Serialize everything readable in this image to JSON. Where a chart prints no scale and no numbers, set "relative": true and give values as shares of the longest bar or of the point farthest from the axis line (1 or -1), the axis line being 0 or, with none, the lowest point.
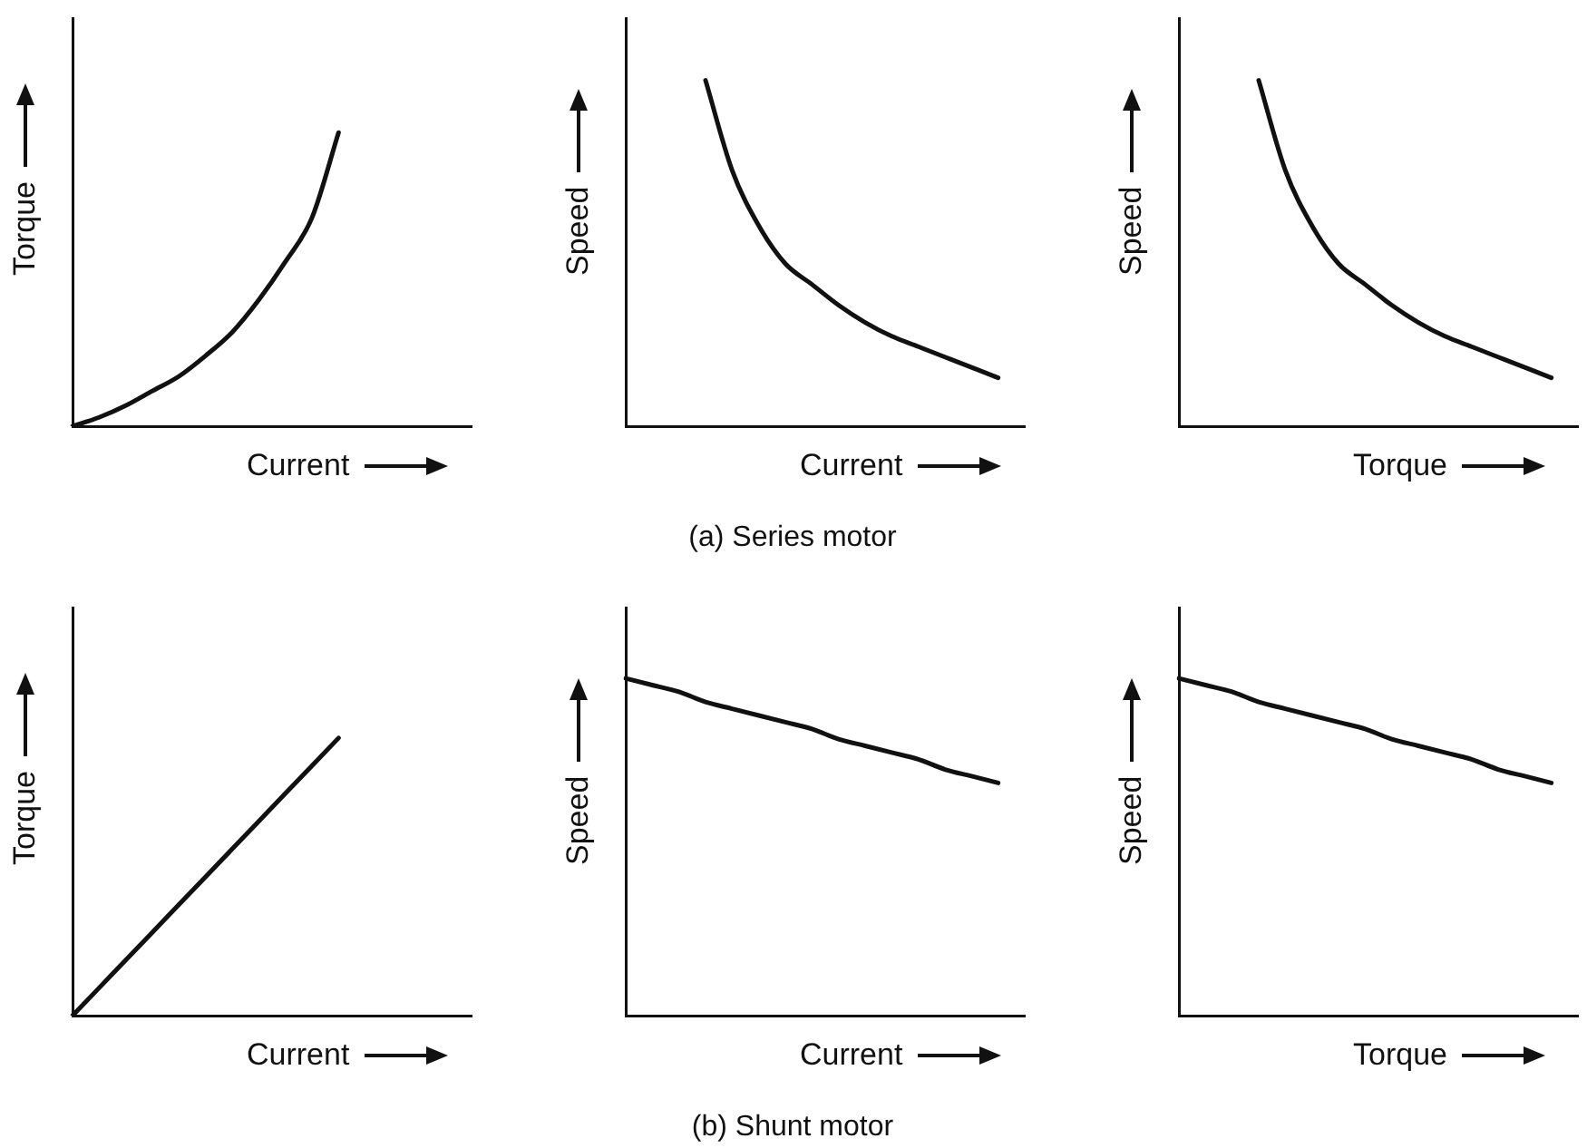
{
  "chart_data": [
    {
      "type": "line",
      "relative": true,
      "ylabel": "Torque",
      "xlabel": "Current",
      "marker": "none",
      "line_style": "solid",
      "categories": [
        null,
        null,
        null,
        null,
        null,
        null,
        null,
        null,
        null,
        null,
        null,
        null,
        null,
        null,
        null,
        null
      ],
      "series": [
        {
          "color": "#111111",
          "values": [
            0,
            0.03,
            0.07,
            0.12,
            0.17,
            0.24,
            0.32,
            0.43,
            0.56,
            0.71,
            1,
            null,
            null,
            null,
            null,
            null
          ]
        }
      ]
    },
    {
      "type": "line",
      "relative": true,
      "ylabel": "Speed",
      "xlabel": "Current",
      "marker": "none",
      "line_style": "solid",
      "annotations": [
        "(a) Series motor"
      ],
      "categories": [
        null,
        null,
        null,
        null,
        null,
        null,
        null,
        null,
        null,
        null,
        null,
        null,
        null,
        null,
        null,
        null
      ],
      "series": [
        {
          "color": "#111111",
          "values": [
            null,
            null,
            null,
            1,
            0.74,
            0.58,
            0.47,
            0.41,
            0.35,
            0.3,
            0.26,
            0.23,
            0.2,
            0.17,
            0.14,
            null
          ]
        }
      ]
    },
    {
      "type": "line",
      "relative": true,
      "ylabel": "Speed",
      "xlabel": "Torque",
      "marker": "none",
      "line_style": "solid",
      "categories": [
        null,
        null,
        null,
        null,
        null,
        null,
        null,
        null,
        null,
        null,
        null,
        null,
        null,
        null,
        null,
        null
      ],
      "series": [
        {
          "color": "#111111",
          "values": [
            null,
            null,
            null,
            1,
            0.74,
            0.58,
            0.47,
            0.41,
            0.35,
            0.3,
            0.26,
            0.23,
            0.2,
            0.17,
            0.14,
            null
          ]
        }
      ]
    },
    {
      "type": "line",
      "relative": true,
      "ylabel": "Torque",
      "xlabel": "Current",
      "marker": "none",
      "line_style": "solid",
      "categories": [
        null,
        null,
        null,
        null,
        null,
        null,
        null,
        null,
        null,
        null,
        null,
        null,
        null,
        null,
        null,
        null
      ],
      "series": [
        {
          "color": "#111111",
          "values": [
            0,
            0.1,
            0.2,
            0.3,
            0.4,
            0.5,
            0.6,
            0.7,
            0.8,
            0.9,
            1,
            null,
            null,
            null,
            null,
            null
          ]
        }
      ]
    },
    {
      "type": "line",
      "relative": true,
      "ylabel": "Speed",
      "xlabel": "Current",
      "marker": "none",
      "line_style": "solid",
      "annotations": [
        "(b) Shunt motor"
      ],
      "categories": [
        null,
        null,
        null,
        null,
        null,
        null,
        null,
        null,
        null,
        null,
        null,
        null,
        null,
        null,
        null,
        null
      ],
      "series": [
        {
          "color": "#111111",
          "values": [
            1,
            0.98,
            0.96,
            0.93,
            0.91,
            0.89,
            0.87,
            0.85,
            0.82,
            0.8,
            0.78,
            0.76,
            0.73,
            0.71,
            0.69,
            null
          ]
        }
      ]
    },
    {
      "type": "line",
      "relative": true,
      "ylabel": "Speed",
      "xlabel": "Torque",
      "marker": "none",
      "line_style": "solid",
      "categories": [
        null,
        null,
        null,
        null,
        null,
        null,
        null,
        null,
        null,
        null,
        null,
        null,
        null,
        null,
        null,
        null
      ],
      "series": [
        {
          "color": "#111111",
          "values": [
            1,
            0.98,
            0.96,
            0.93,
            0.91,
            0.89,
            0.87,
            0.85,
            0.82,
            0.8,
            0.78,
            0.76,
            0.73,
            0.71,
            0.69,
            null
          ]
        }
      ]
    }
  ]
}
